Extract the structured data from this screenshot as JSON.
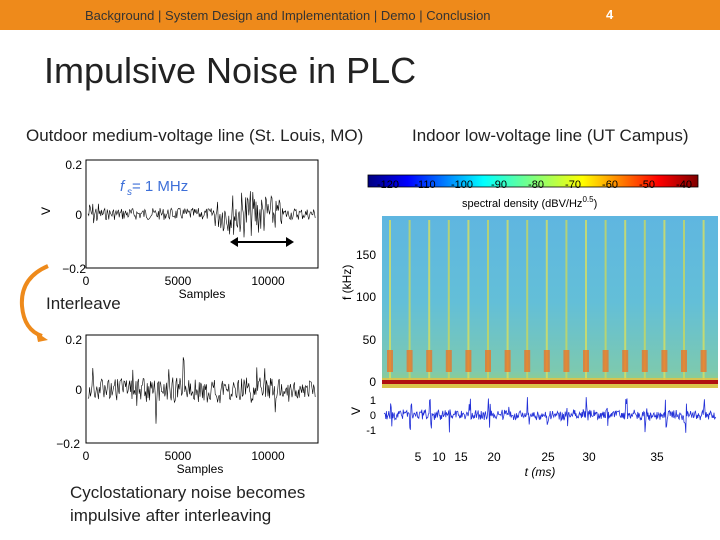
{
  "header": {
    "nav_items": [
      "Background",
      "System Design and Implementation",
      "Demo",
      "Conclusion"
    ],
    "separator": "|",
    "page_number": "4",
    "bar_color": "#ee8a1b"
  },
  "slide": {
    "title": "Impulsive Noise in PLC",
    "caption_left": "Outdoor medium-voltage line (St. Louis, MO)",
    "caption_right": "Indoor low-voltage line (UT Campus)",
    "interleave_label": "Interleave",
    "note_line1": "Cyclostationary noise becomes",
    "note_line2": "impulsive after interleaving"
  },
  "plot_top": {
    "fs_label": "f",
    "fs_sub": "s",
    "fs_value": " = 1 MHz",
    "y_ticks": [
      "0.2",
      "0",
      "−0.2"
    ],
    "x_ticks": [
      "0",
      "5000",
      "10000"
    ],
    "ylabel": "V",
    "xlabel": "Samples"
  },
  "plot_bottom": {
    "y_ticks": [
      "0.2",
      "0",
      "−0.2"
    ],
    "x_ticks": [
      "0",
      "5000",
      "10000"
    ],
    "xlabel": "Samples"
  },
  "spectrogram": {
    "colorbar_ticks": [
      "-120",
      "-110",
      "-100",
      "-90",
      "-80",
      "-70",
      "-60",
      "-50",
      "-40"
    ],
    "colorbar_label": "spectral density (dBV/Hz",
    "colorbar_label_sup": "0.5",
    "colorbar_label_end": ")",
    "ylabel": "f (kHz)",
    "y_ticks": [
      "150",
      "100",
      "50",
      "0"
    ],
    "wave_ylabel": "V",
    "wave_y_ticks": [
      "1",
      "0",
      "-1"
    ],
    "x_ticks": [
      "5",
      "10",
      "15",
      "20",
      "25",
      "30",
      "35"
    ],
    "xlabel": "t (ms)"
  }
}
